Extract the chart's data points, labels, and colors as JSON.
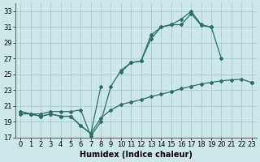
{
  "xlabel": "Humidex (Indice chaleur)",
  "background_color": "#cce8e8",
  "grid_color": "#aacccc",
  "line_color": "#2d6e62",
  "xlim": [
    -0.5,
    23.5
  ],
  "ylim": [
    17,
    34
  ],
  "yticks": [
    17,
    19,
    21,
    23,
    25,
    27,
    29,
    31,
    33
  ],
  "xticks": [
    0,
    1,
    2,
    3,
    4,
    5,
    6,
    7,
    8,
    9,
    10,
    11,
    12,
    13,
    14,
    15,
    16,
    17,
    18,
    19,
    20,
    21,
    22,
    23
  ],
  "series1_y": [
    20.0,
    20.0,
    20.0,
    20.3,
    20.3,
    20.3,
    20.5,
    17.2,
    19.0,
    23.5,
    25.5,
    26.5,
    26.7,
    30.0,
    31.0,
    31.3,
    32.0,
    33.0,
    31.3,
    31.0,
    27.0,
    null,
    null,
    24.0
  ],
  "series2_y": [
    20.3,
    20.0,
    19.7,
    20.0,
    19.7,
    19.7,
    18.5,
    17.5,
    23.5,
    null,
    25.3,
    26.5,
    26.7,
    29.5,
    31.0,
    31.3,
    31.3,
    32.7,
    31.2,
    31.0,
    null,
    null,
    null,
    null
  ],
  "series3_y": [
    20.3,
    20.0,
    19.7,
    20.0,
    19.7,
    19.7,
    18.5,
    17.5,
    19.5,
    20.5,
    21.2,
    21.5,
    21.8,
    22.2,
    22.5,
    22.8,
    23.2,
    23.5,
    23.8,
    24.0,
    24.2,
    24.3,
    24.4,
    24.0
  ],
  "marker": "D",
  "markersize": 2.0,
  "linewidth": 0.9,
  "xlabel_fontsize": 7,
  "tick_fontsize": 6
}
